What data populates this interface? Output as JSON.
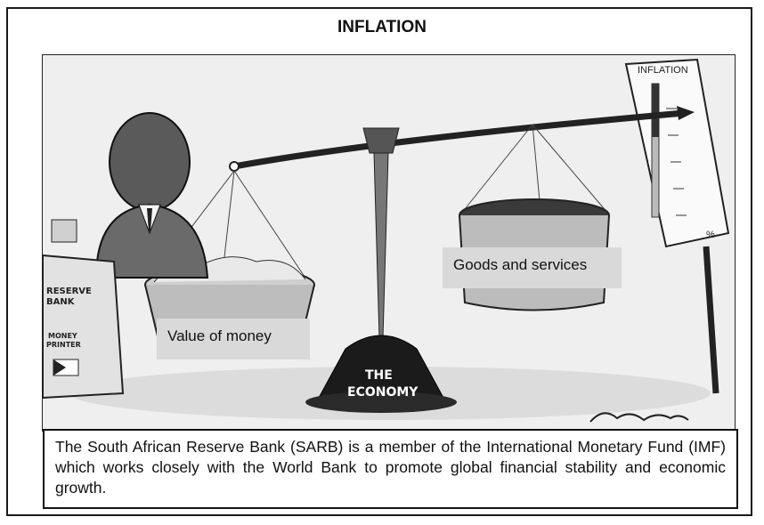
{
  "title": "INFLATION",
  "cartoon": {
    "printer_label": [
      "RESERVE",
      "BANK",
      "MONEY",
      "PRINTER"
    ],
    "base_label": [
      "THE",
      "ECONOMY"
    ],
    "gauge_label": "INFLATION",
    "gauge_unit": "%",
    "signature": "Zapiro-style signature"
  },
  "labels": {
    "value_of_money": "Value of money",
    "goods_and_services": "Goods and services"
  },
  "caption": "The South African Reserve Bank (SARB) is a member of the International Monetary Fund (IMF) which works closely with the World Bank to promote global financial stability and economic growth."
}
